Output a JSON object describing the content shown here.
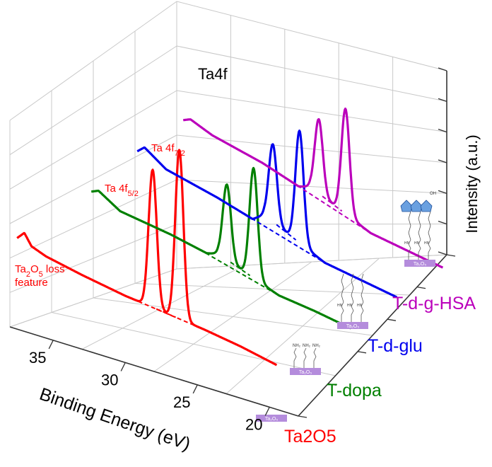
{
  "chart_data": {
    "type": "line",
    "title": "Ta4f",
    "xlabel": "Binding Energy (eV)",
    "ylabel": "Intensity (a.u.)",
    "x_ticks": [
      "35",
      "30",
      "25",
      "20"
    ],
    "xlim": [
      38,
      18
    ],
    "grid": true,
    "projection": "3d waterfall",
    "series": [
      {
        "name": "Ta2O5",
        "color": "#ff0000",
        "points": [
          [
            37.5,
            0.26
          ],
          [
            37.0,
            0.3
          ],
          [
            36.5,
            0.24
          ],
          [
            35.5,
            0.21
          ],
          [
            33.0,
            0.17
          ],
          [
            30.0,
            0.13
          ],
          [
            28.8,
            0.12
          ],
          [
            28.1,
            0.85
          ],
          [
            27.6,
            0.26
          ],
          [
            27.0,
            0.35
          ],
          [
            26.2,
            1.0
          ],
          [
            25.6,
            0.3
          ],
          [
            24.5,
            0.08
          ],
          [
            22.0,
            0.05
          ],
          [
            19.5,
            0.01
          ]
        ]
      },
      {
        "name": "T-dopa",
        "color": "#008000",
        "points": [
          [
            37.5,
            0.4
          ],
          [
            37.0,
            0.42
          ],
          [
            35.5,
            0.33
          ],
          [
            32.0,
            0.28
          ],
          [
            29.5,
            0.23
          ],
          [
            28.7,
            0.25
          ],
          [
            28.1,
            0.72
          ],
          [
            27.6,
            0.26
          ],
          [
            27.0,
            0.33
          ],
          [
            26.3,
            0.88
          ],
          [
            25.6,
            0.22
          ],
          [
            24.5,
            0.1
          ],
          [
            22.0,
            0.07
          ],
          [
            19.5,
            0.03
          ]
        ]
      },
      {
        "name": "T-d-glu",
        "color": "#0000ee",
        "points": [
          [
            37.5,
            0.46
          ],
          [
            37.0,
            0.5
          ],
          [
            35.5,
            0.4
          ],
          [
            32.0,
            0.32
          ],
          [
            29.5,
            0.25
          ],
          [
            28.7,
            0.3
          ],
          [
            28.1,
            0.78
          ],
          [
            27.6,
            0.28
          ],
          [
            27.0,
            0.38
          ],
          [
            26.3,
            0.92
          ],
          [
            25.6,
            0.26
          ],
          [
            24.5,
            0.11
          ],
          [
            22.0,
            0.07
          ],
          [
            19.5,
            0.03
          ]
        ]
      },
      {
        "name": "T-d-g-HSA",
        "color": "#bb00bb",
        "points": [
          [
            37.5,
            0.46
          ],
          [
            37.0,
            0.48
          ],
          [
            35.5,
            0.42
          ],
          [
            32.0,
            0.34
          ],
          [
            29.5,
            0.26
          ],
          [
            28.7,
            0.28
          ],
          [
            28.1,
            0.74
          ],
          [
            27.6,
            0.26
          ],
          [
            27.0,
            0.34
          ],
          [
            26.3,
            0.86
          ],
          [
            25.6,
            0.22
          ],
          [
            24.5,
            0.1
          ],
          [
            22.0,
            0.06
          ],
          [
            19.5,
            0.02
          ]
        ]
      }
    ],
    "annotations": {
      "ta_4f72_base": "Ta 4f",
      "ta_4f72_sub": "7/2",
      "ta_4f52_base": "Ta 4f",
      "ta_4f52_sub": "5/2",
      "loss_a": "Ta",
      "loss_sub": "2",
      "loss_b": "O",
      "loss_sub2": "5",
      "loss_c": " loss",
      "loss_line2": "feature"
    },
    "substrate_label": "Ta₂O₅",
    "amine_label": "NH₂",
    "oh_label": "OH",
    "hn_label": "HN"
  }
}
